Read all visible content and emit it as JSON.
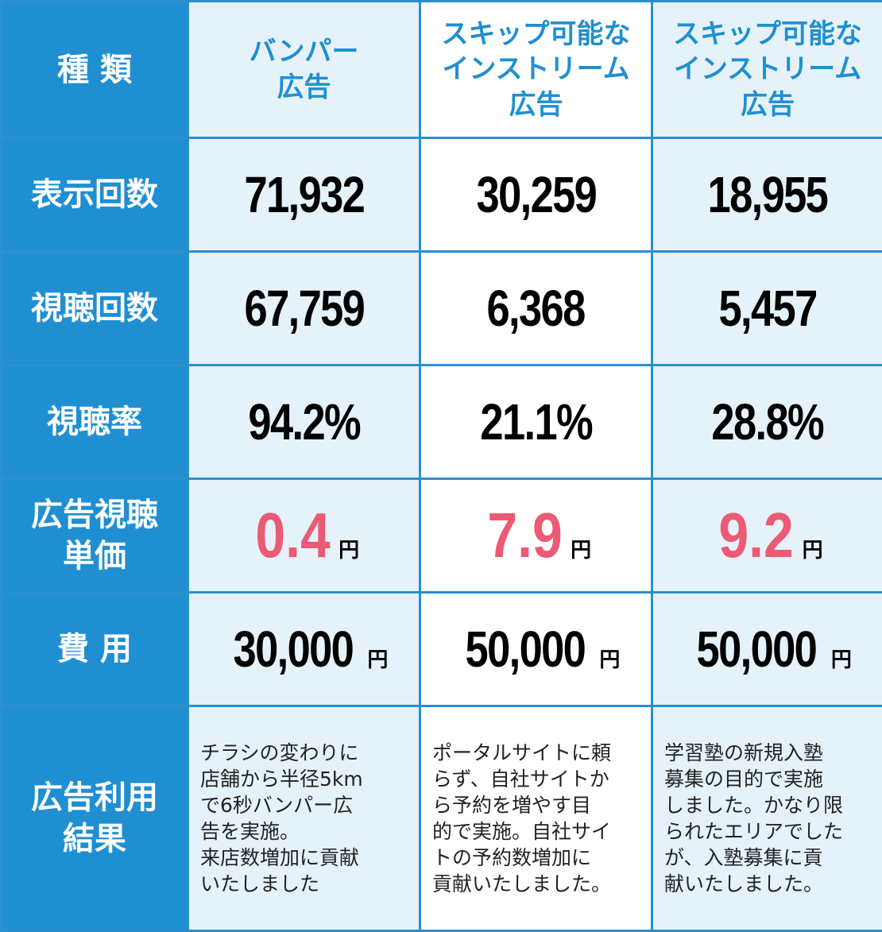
{
  "header": {
    "label": "種 類",
    "columns": [
      "バンパー\n広告",
      "スキップ可能な\nインストリーム\n広告",
      "スキップ可能な\nインストリーム\n広告"
    ]
  },
  "rows": {
    "impressions": {
      "label": "表示回数",
      "values": [
        "71,932",
        "30,259",
        "18,955"
      ]
    },
    "views": {
      "label": "視聴回数",
      "values": [
        "67,759",
        "6,368",
        "5,457"
      ]
    },
    "view_rate": {
      "label": "視聴率",
      "values": [
        "94.2%",
        "21.1%",
        "28.8%"
      ]
    },
    "cpv": {
      "label": "広告視聴\n単価",
      "values": [
        "0.4",
        "7.9",
        "9.2"
      ],
      "unit": "円"
    },
    "cost": {
      "label": "費 用",
      "values": [
        "30,000",
        "50,000",
        "50,000"
      ],
      "unit": "円"
    },
    "results": {
      "label": "広告利用\n結果",
      "values": [
        "チラシの変わりに\n店舗から半径5km\nで6秒バンパー広\n告を実施。\n来店数増加に貢献\nいたしました",
        "ポータルサイトに頼\nらず、自社サイトか\nら予約を増やす目\n的で実施。自社サイ\nトの予約数増加に\n貢献いたしました。",
        "学習塾の新規入塾\n募集の目的で実施\nしました。かなり限\nられたエリアでした\nが、入塾募集に貢\n献いたしました。"
      ]
    }
  },
  "colors": {
    "header_blue": "#1f8fd1",
    "grid_blue": "#2b8fcf",
    "price_pink": "#ec5a74",
    "shade": "#e6f2fa"
  }
}
